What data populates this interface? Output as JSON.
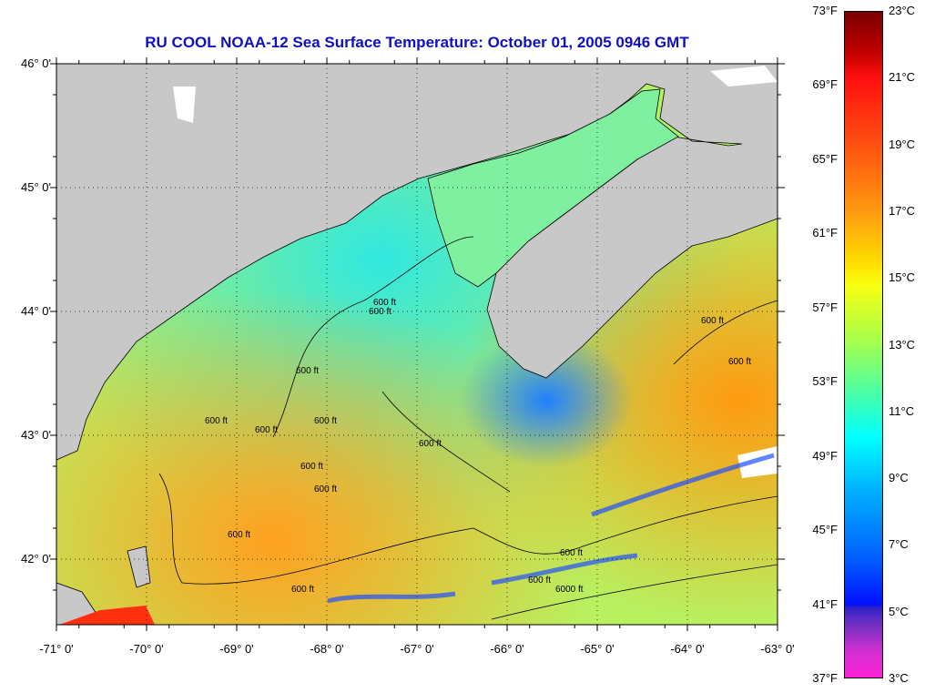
{
  "title": "RU COOL  NOAA-12  Sea Surface Temperature:  October 01, 2005 0946 GMT",
  "lon_labels": [
    "-71° 0'",
    "-70° 0'",
    "-69° 0'",
    "-68° 0'",
    "-67° 0'",
    "-66° 0'",
    "-65° 0'",
    "-64° 0'",
    "-63° 0'"
  ],
  "lat_labels": [
    "46° 0'",
    "45° 0'",
    "44° 0'",
    "43° 0'",
    "42° 0'"
  ],
  "colorbar": {
    "fahrenheit": [
      "73°F",
      "69°F",
      "65°F",
      "61°F",
      "57°F",
      "53°F",
      "49°F",
      "45°F",
      "41°F",
      "37°F"
    ],
    "celsius": [
      "23°C",
      "21°C",
      "19°C",
      "17°C",
      "15°C",
      "13°C",
      "11°C",
      "9°C",
      "7°C",
      "5°C",
      "3°C"
    ],
    "range_c": [
      3,
      23
    ]
  },
  "contour_labels": [
    "600 ft",
    "600 ft",
    "600 ft",
    "600 ft",
    "600 ft",
    "600 ft",
    "600 ft",
    "600 ft",
    "600 ft",
    "600 ft",
    "600 ft",
    "600 ft",
    "600 ft",
    "600 ft",
    "600 ft",
    "6000 ft"
  ],
  "colors": {
    "land": "#c8c8c8",
    "title": "#1010c0"
  }
}
